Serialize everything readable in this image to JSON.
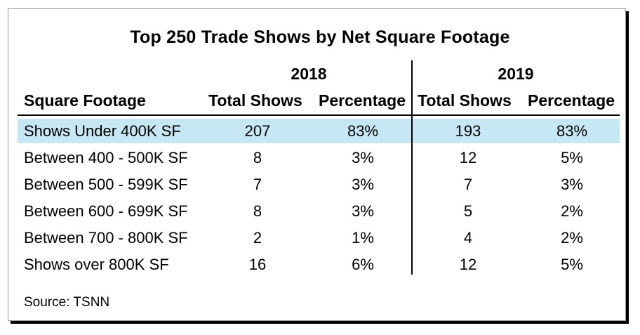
{
  "chart_data": {
    "type": "table",
    "title": "Top 250 Trade Shows by Net Square Footage",
    "row_header": "Square Footage",
    "years": [
      "2018",
      "2019"
    ],
    "columns": [
      "Total Shows",
      "Percentage",
      "Total Shows",
      "Percentage"
    ],
    "rows": [
      {
        "label": "Shows Under 400K SF",
        "values": [
          "207",
          "83%",
          "193",
          "83%"
        ]
      },
      {
        "label": "Between 400 - 500K SF",
        "values": [
          "8",
          "3%",
          "12",
          "5%"
        ]
      },
      {
        "label": "Between 500 - 599K SF",
        "values": [
          "7",
          "3%",
          "7",
          "3%"
        ]
      },
      {
        "label": "Between 600 - 699K SF",
        "values": [
          "8",
          "3%",
          "5",
          "2%"
        ]
      },
      {
        "label": "Between 700 - 800K SF",
        "values": [
          "2",
          "1%",
          "4",
          "2%"
        ]
      },
      {
        "label": "Shows over 800K SF",
        "values": [
          "16",
          "6%",
          "12",
          "5%"
        ]
      }
    ],
    "highlighted_row": 0,
    "highlight_color": "#c6e7f4",
    "source": "Source: TSNN"
  }
}
